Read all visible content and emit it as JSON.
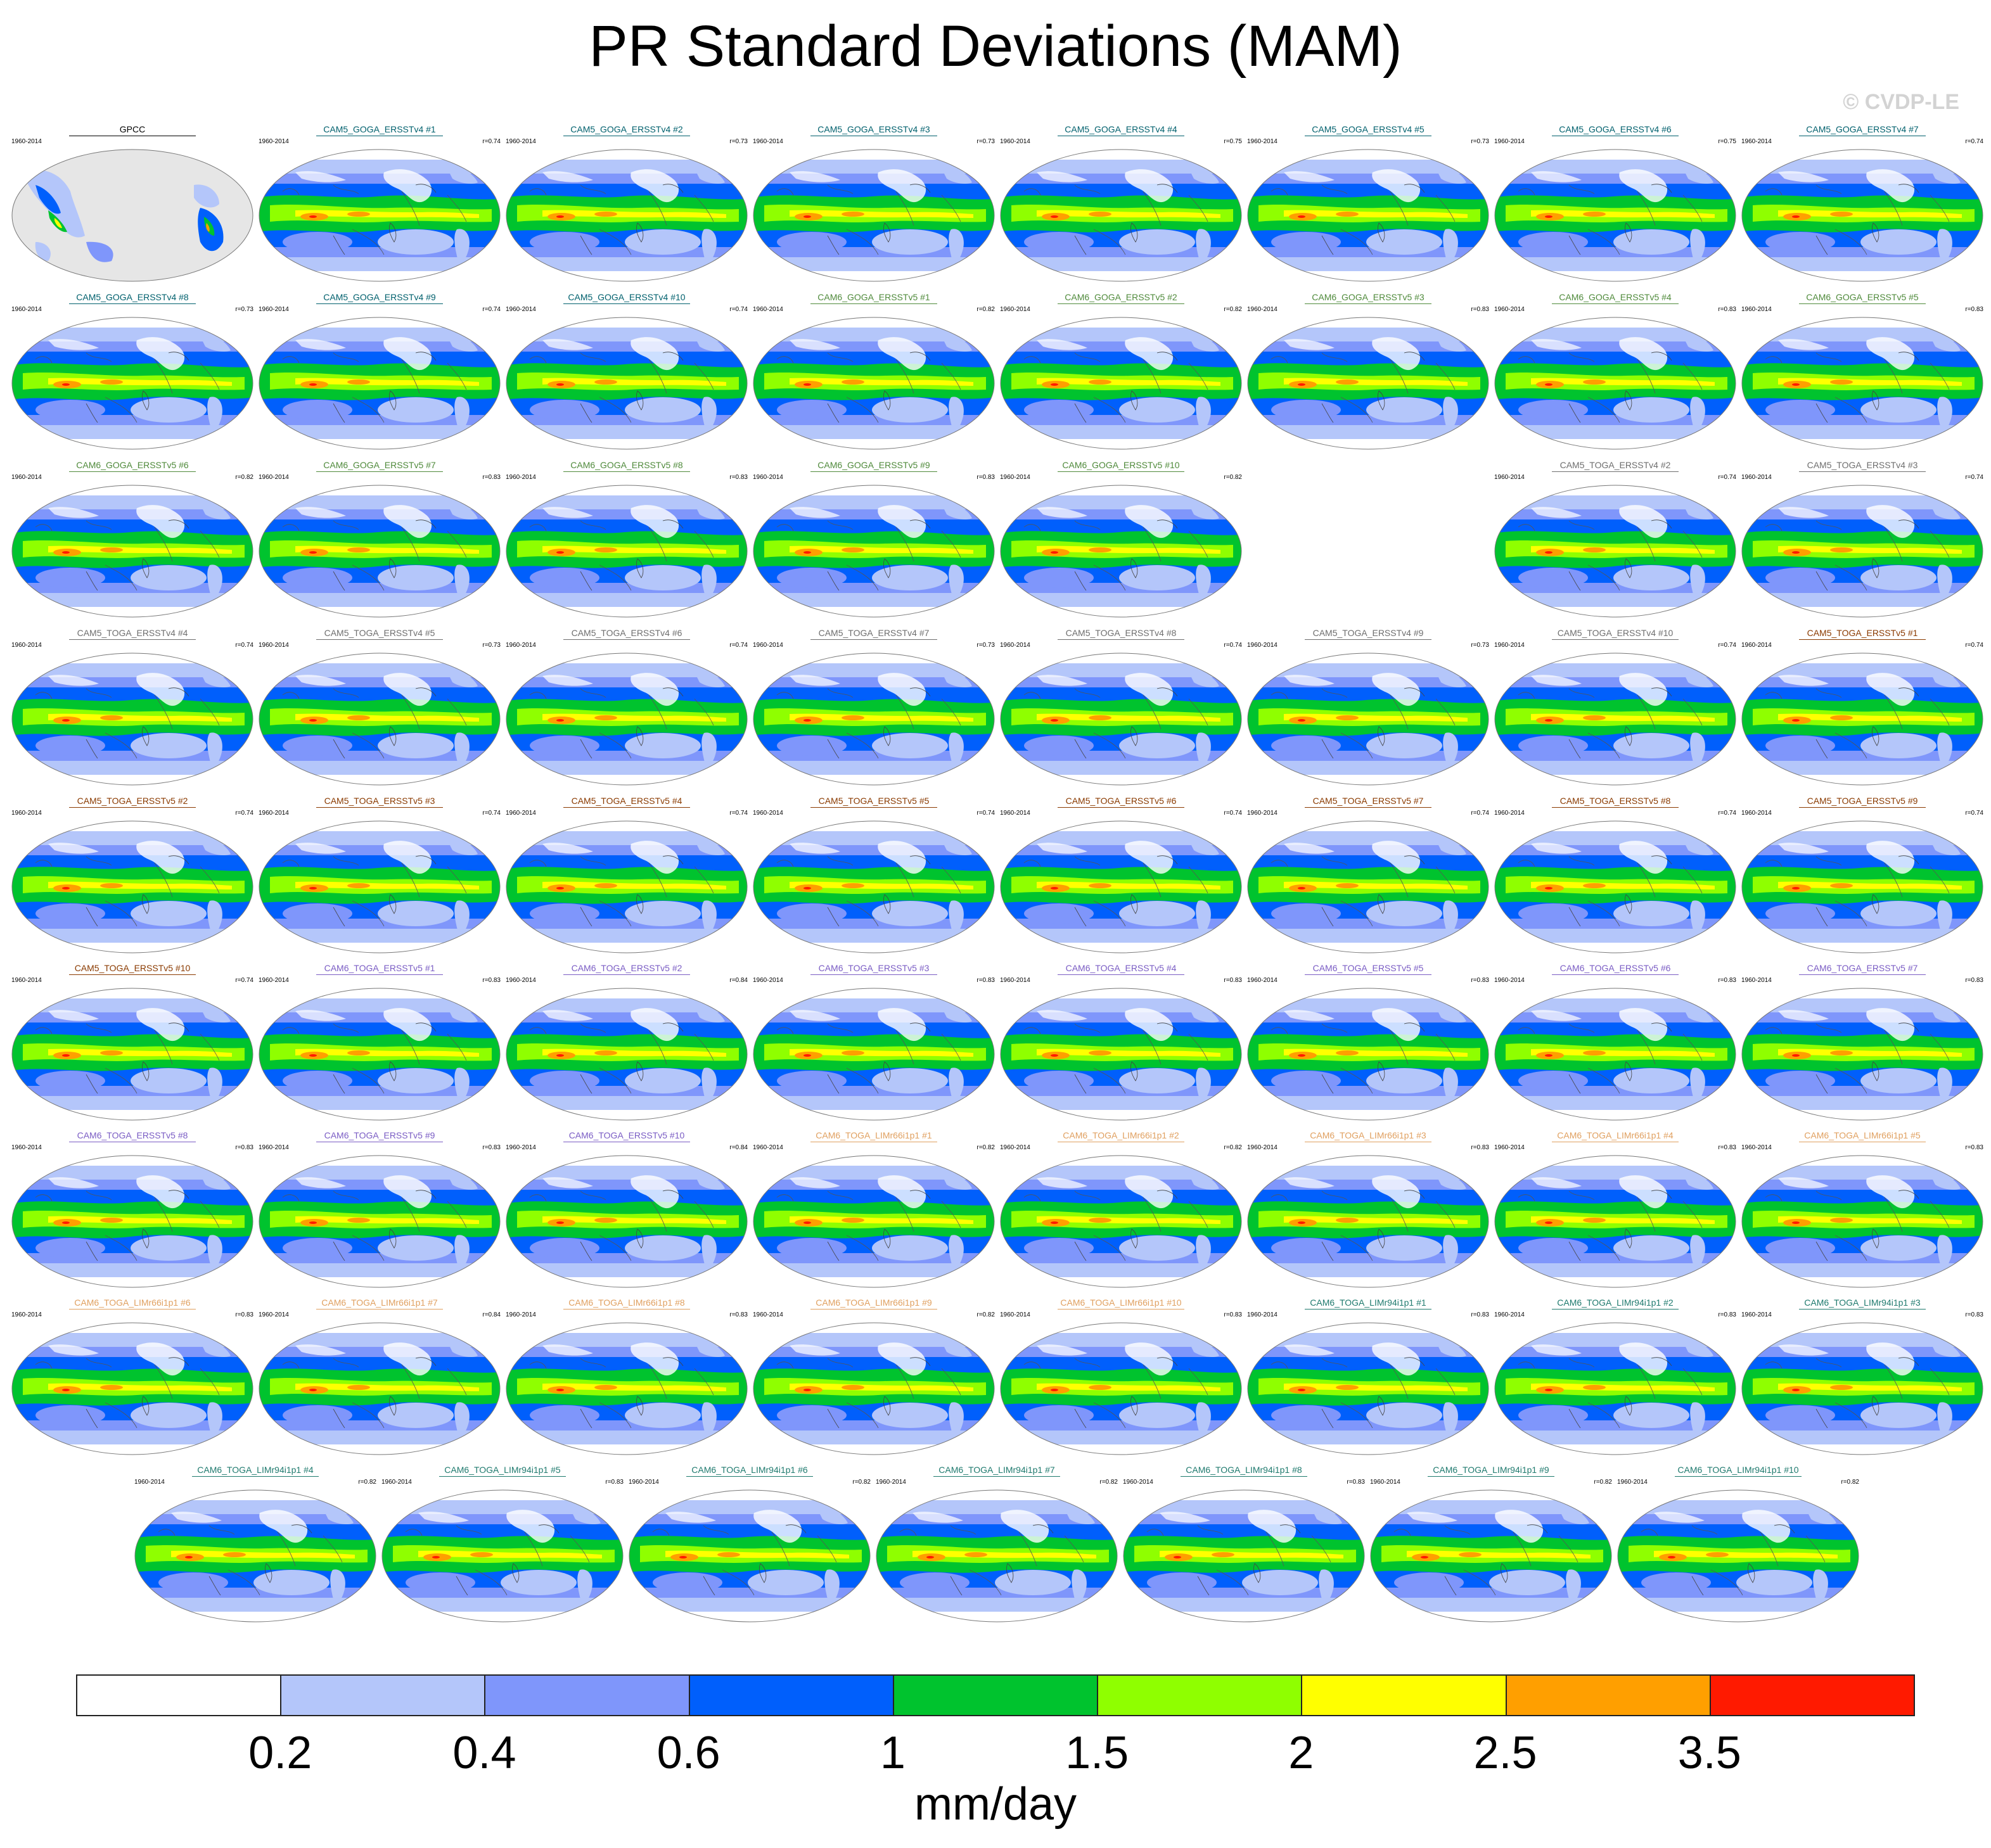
{
  "title": "PR Standard Deviations (MAM)",
  "watermark": "© CVDP-LE",
  "chart_data": {
    "type": "map-panels",
    "variable": "PR",
    "season": "MAM",
    "statistic": "standard deviation",
    "period": "1960-2014",
    "colorbar": {
      "units": "mm/day",
      "levels": [
        "0.2",
        "0.4",
        "0.6",
        "1",
        "1.5",
        "2",
        "2.5",
        "3.5"
      ],
      "colors": [
        "#ffffff",
        "#b4c6fa",
        "#7f96fb",
        "#005ffc",
        "#00c32e",
        "#8fff00",
        "#ffff00",
        "#ff9f00",
        "#ff1a00"
      ]
    },
    "panels": [
      {
        "name": "GPCC",
        "period": "1960-2014",
        "r": "",
        "color": "#000000",
        "observed": true
      },
      {
        "name": "CAM5_GOGA_ERSSTv4 #1",
        "period": "1960-2014",
        "r": "r=0.74",
        "color": "#00606d"
      },
      {
        "name": "CAM5_GOGA_ERSSTv4 #2",
        "period": "1960-2014",
        "r": "r=0.73",
        "color": "#00606d"
      },
      {
        "name": "CAM5_GOGA_ERSSTv4 #3",
        "period": "1960-2014",
        "r": "r=0.73",
        "color": "#00606d"
      },
      {
        "name": "CAM5_GOGA_ERSSTv4 #4",
        "period": "1960-2014",
        "r": "r=0.75",
        "color": "#00606d"
      },
      {
        "name": "CAM5_GOGA_ERSSTv4 #5",
        "period": "1960-2014",
        "r": "r=0.73",
        "color": "#00606d"
      },
      {
        "name": "CAM5_GOGA_ERSSTv4 #6",
        "period": "1960-2014",
        "r": "r=0.75",
        "color": "#00606d"
      },
      {
        "name": "CAM5_GOGA_ERSSTv4 #7",
        "period": "1960-2014",
        "r": "r=0.74",
        "color": "#00606d"
      },
      {
        "name": "CAM5_GOGA_ERSSTv4 #8",
        "period": "1960-2014",
        "r": "r=0.73",
        "color": "#00606d"
      },
      {
        "name": "CAM5_GOGA_ERSSTv4 #9",
        "period": "1960-2014",
        "r": "r=0.74",
        "color": "#00606d"
      },
      {
        "name": "CAM5_GOGA_ERSSTv4 #10",
        "period": "1960-2014",
        "r": "r=0.74",
        "color": "#00606d"
      },
      {
        "name": "CAM6_GOGA_ERSSTv5 #1",
        "period": "1960-2014",
        "r": "r=0.82",
        "color": "#4f8a3b"
      },
      {
        "name": "CAM6_GOGA_ERSSTv5 #2",
        "period": "1960-2014",
        "r": "r=0.82",
        "color": "#4f8a3b"
      },
      {
        "name": "CAM6_GOGA_ERSSTv5 #3",
        "period": "1960-2014",
        "r": "r=0.83",
        "color": "#4f8a3b"
      },
      {
        "name": "CAM6_GOGA_ERSSTv5 #4",
        "period": "1960-2014",
        "r": "r=0.83",
        "color": "#4f8a3b"
      },
      {
        "name": "CAM6_GOGA_ERSSTv5 #5",
        "period": "1960-2014",
        "r": "r=0.83",
        "color": "#4f8a3b"
      },
      {
        "name": "CAM6_GOGA_ERSSTv5 #6",
        "period": "1960-2014",
        "r": "r=0.82",
        "color": "#4f8a3b"
      },
      {
        "name": "CAM6_GOGA_ERSSTv5 #7",
        "period": "1960-2014",
        "r": "r=0.83",
        "color": "#4f8a3b"
      },
      {
        "name": "CAM6_GOGA_ERSSTv5 #8",
        "period": "1960-2014",
        "r": "r=0.83",
        "color": "#4f8a3b"
      },
      {
        "name": "CAM6_GOGA_ERSSTv5 #9",
        "period": "1960-2014",
        "r": "r=0.83",
        "color": "#4f8a3b"
      },
      {
        "name": "CAM6_GOGA_ERSSTv5 #10",
        "period": "1960-2014",
        "r": "r=0.82",
        "color": "#4f8a3b"
      },
      {
        "name": "CAM5_TOGA_ERSSTv4 #2",
        "period": "1960-2014",
        "r": "r=0.74",
        "color": "#6e6e6e"
      },
      {
        "name": "CAM5_TOGA_ERSSTv4 #3",
        "period": "1960-2014",
        "r": "r=0.74",
        "color": "#6e6e6e"
      },
      {
        "name": "CAM5_TOGA_ERSSTv4 #4",
        "period": "1960-2014",
        "r": "r=0.74",
        "color": "#6e6e6e"
      },
      {
        "name": "CAM5_TOGA_ERSSTv4 #5",
        "period": "1960-2014",
        "r": "r=0.73",
        "color": "#6e6e6e"
      },
      {
        "name": "CAM5_TOGA_ERSSTv4 #6",
        "period": "1960-2014",
        "r": "r=0.74",
        "color": "#6e6e6e"
      },
      {
        "name": "CAM5_TOGA_ERSSTv4 #7",
        "period": "1960-2014",
        "r": "r=0.73",
        "color": "#6e6e6e"
      },
      {
        "name": "CAM5_TOGA_ERSSTv4 #8",
        "period": "1960-2014",
        "r": "r=0.74",
        "color": "#6e6e6e"
      },
      {
        "name": "CAM5_TOGA_ERSSTv4 #9",
        "period": "1960-2014",
        "r": "r=0.73",
        "color": "#6e6e6e"
      },
      {
        "name": "CAM5_TOGA_ERSSTv4 #10",
        "period": "1960-2014",
        "r": "r=0.74",
        "color": "#6e6e6e"
      },
      {
        "name": "CAM5_TOGA_ERSSTv5 #1",
        "period": "1960-2014",
        "r": "r=0.74",
        "color": "#8a3a00"
      },
      {
        "name": "CAM5_TOGA_ERSSTv5 #2",
        "period": "1960-2014",
        "r": "r=0.74",
        "color": "#8a3a00"
      },
      {
        "name": "CAM5_TOGA_ERSSTv5 #3",
        "period": "1960-2014",
        "r": "r=0.74",
        "color": "#8a3a00"
      },
      {
        "name": "CAM5_TOGA_ERSSTv5 #4",
        "period": "1960-2014",
        "r": "r=0.74",
        "color": "#8a3a00"
      },
      {
        "name": "CAM5_TOGA_ERSSTv5 #5",
        "period": "1960-2014",
        "r": "r=0.74",
        "color": "#8a3a00"
      },
      {
        "name": "CAM5_TOGA_ERSSTv5 #6",
        "period": "1960-2014",
        "r": "r=0.74",
        "color": "#8a3a00"
      },
      {
        "name": "CAM5_TOGA_ERSSTv5 #7",
        "period": "1960-2014",
        "r": "r=0.74",
        "color": "#8a3a00"
      },
      {
        "name": "CAM5_TOGA_ERSSTv5 #8",
        "period": "1960-2014",
        "r": "r=0.74",
        "color": "#8a3a00"
      },
      {
        "name": "CAM5_TOGA_ERSSTv5 #9",
        "period": "1960-2014",
        "r": "r=0.74",
        "color": "#8a3a00"
      },
      {
        "name": "CAM5_TOGA_ERSSTv5 #10",
        "period": "1960-2014",
        "r": "r=0.74",
        "color": "#8a3a00"
      },
      {
        "name": "CAM6_TOGA_ERSSTv5 #1",
        "period": "1960-2014",
        "r": "r=0.83",
        "color": "#7a5cc4"
      },
      {
        "name": "CAM6_TOGA_ERSSTv5 #2",
        "period": "1960-2014",
        "r": "r=0.84",
        "color": "#7a5cc4"
      },
      {
        "name": "CAM6_TOGA_ERSSTv5 #3",
        "period": "1960-2014",
        "r": "r=0.83",
        "color": "#7a5cc4"
      },
      {
        "name": "CAM6_TOGA_ERSSTv5 #4",
        "period": "1960-2014",
        "r": "r=0.83",
        "color": "#7a5cc4"
      },
      {
        "name": "CAM6_TOGA_ERSSTv5 #5",
        "period": "1960-2014",
        "r": "r=0.83",
        "color": "#7a5cc4"
      },
      {
        "name": "CAM6_TOGA_ERSSTv5 #6",
        "period": "1960-2014",
        "r": "r=0.83",
        "color": "#7a5cc4"
      },
      {
        "name": "CAM6_TOGA_ERSSTv5 #7",
        "period": "1960-2014",
        "r": "r=0.83",
        "color": "#7a5cc4"
      },
      {
        "name": "CAM6_TOGA_ERSSTv5 #8",
        "period": "1960-2014",
        "r": "r=0.83",
        "color": "#7a5cc4"
      },
      {
        "name": "CAM6_TOGA_ERSSTv5 #9",
        "period": "1960-2014",
        "r": "r=0.83",
        "color": "#7a5cc4"
      },
      {
        "name": "CAM6_TOGA_ERSSTv5 #10",
        "period": "1960-2014",
        "r": "r=0.84",
        "color": "#7a5cc4"
      },
      {
        "name": "CAM6_TOGA_LIMr66i1p1 #1",
        "period": "1960-2014",
        "r": "r=0.82",
        "color": "#e0a060"
      },
      {
        "name": "CAM6_TOGA_LIMr66i1p1 #2",
        "period": "1960-2014",
        "r": "r=0.82",
        "color": "#e0a060"
      },
      {
        "name": "CAM6_TOGA_LIMr66i1p1 #3",
        "period": "1960-2014",
        "r": "r=0.83",
        "color": "#e0a060"
      },
      {
        "name": "CAM6_TOGA_LIMr66i1p1 #4",
        "period": "1960-2014",
        "r": "r=0.83",
        "color": "#e0a060"
      },
      {
        "name": "CAM6_TOGA_LIMr66i1p1 #5",
        "period": "1960-2014",
        "r": "r=0.83",
        "color": "#e0a060"
      },
      {
        "name": "CAM6_TOGA_LIMr66i1p1 #6",
        "period": "1960-2014",
        "r": "r=0.83",
        "color": "#e0a060"
      },
      {
        "name": "CAM6_TOGA_LIMr66i1p1 #7",
        "period": "1960-2014",
        "r": "r=0.84",
        "color": "#e0a060"
      },
      {
        "name": "CAM6_TOGA_LIMr66i1p1 #8",
        "period": "1960-2014",
        "r": "r=0.83",
        "color": "#e0a060"
      },
      {
        "name": "CAM6_TOGA_LIMr66i1p1 #9",
        "period": "1960-2014",
        "r": "r=0.82",
        "color": "#e0a060"
      },
      {
        "name": "CAM6_TOGA_LIMr66i1p1 #10",
        "period": "1960-2014",
        "r": "r=0.83",
        "color": "#e0a060"
      },
      {
        "name": "CAM6_TOGA_LIMr94i1p1 #1",
        "period": "1960-2014",
        "r": "r=0.83",
        "color": "#1f7a6e"
      },
      {
        "name": "CAM6_TOGA_LIMr94i1p1 #2",
        "period": "1960-2014",
        "r": "r=0.83",
        "color": "#1f7a6e"
      },
      {
        "name": "CAM6_TOGA_LIMr94i1p1 #3",
        "period": "1960-2014",
        "r": "r=0.83",
        "color": "#1f7a6e"
      },
      {
        "name": "CAM6_TOGA_LIMr94i1p1 #4",
        "period": "1960-2014",
        "r": "r=0.82",
        "color": "#1f7a6e"
      },
      {
        "name": "CAM6_TOGA_LIMr94i1p1 #5",
        "period": "1960-2014",
        "r": "r=0.83",
        "color": "#1f7a6e"
      },
      {
        "name": "CAM6_TOGA_LIMr94i1p1 #6",
        "period": "1960-2014",
        "r": "r=0.82",
        "color": "#1f7a6e"
      },
      {
        "name": "CAM6_TOGA_LIMr94i1p1 #7",
        "period": "1960-2014",
        "r": "r=0.82",
        "color": "#1f7a6e"
      },
      {
        "name": "CAM6_TOGA_LIMr94i1p1 #8",
        "period": "1960-2014",
        "r": "r=0.83",
        "color": "#1f7a6e"
      },
      {
        "name": "CAM6_TOGA_LIMr94i1p1 #9",
        "period": "1960-2014",
        "r": "r=0.82",
        "color": "#1f7a6e"
      },
      {
        "name": "CAM6_TOGA_LIMr94i1p1 #10",
        "period": "1960-2014",
        "r": "r=0.82",
        "color": "#1f7a6e"
      }
    ]
  }
}
